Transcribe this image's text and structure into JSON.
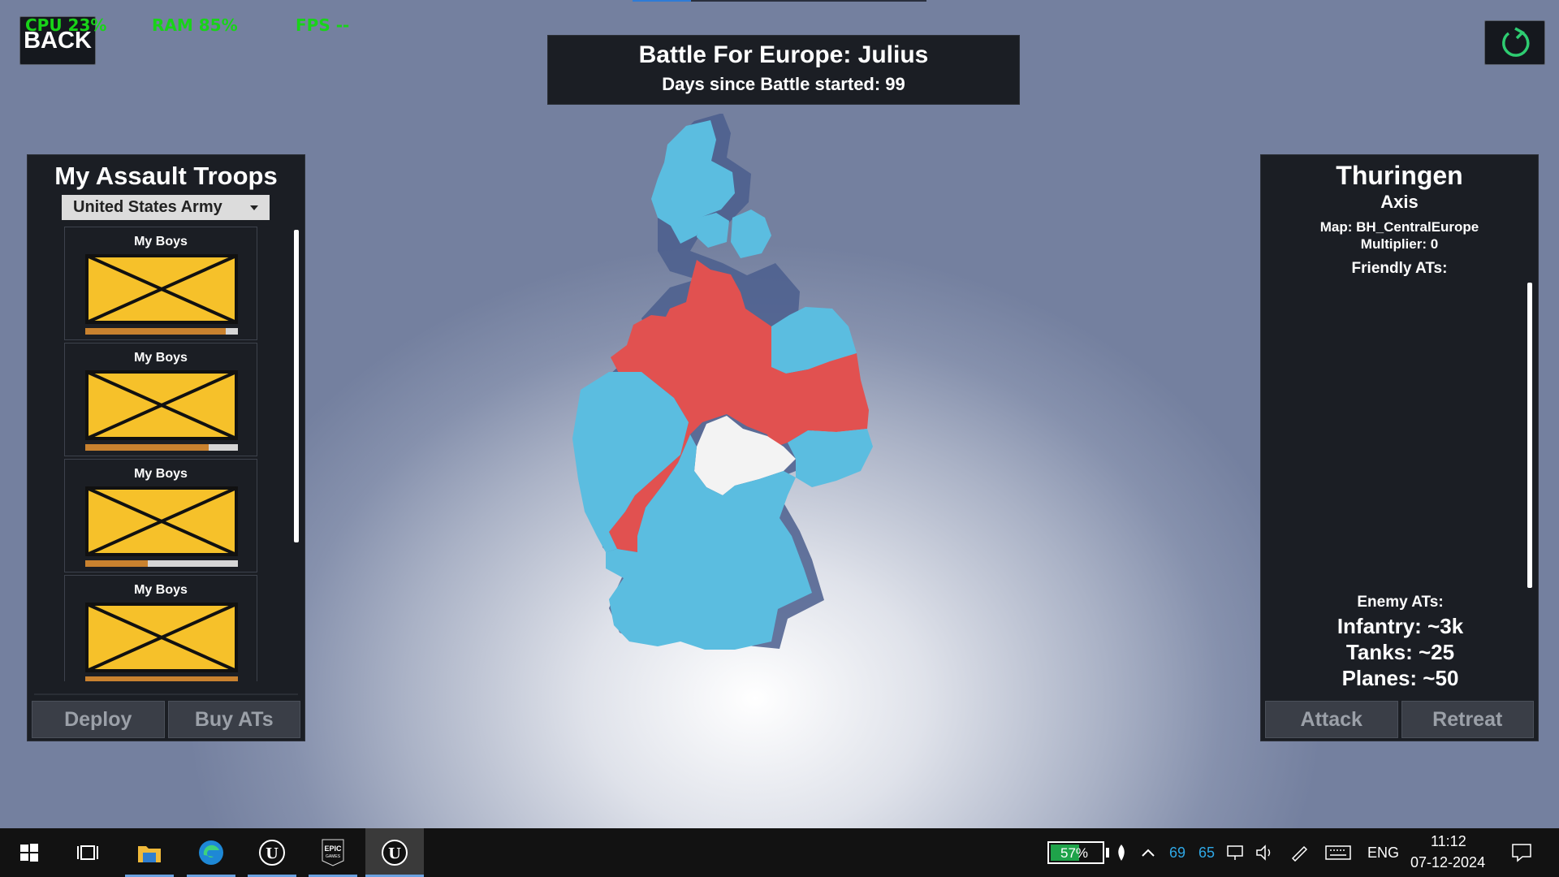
{
  "top_progress_fraction": 0.2,
  "hud": {
    "cpu": "CPU 23%",
    "ram": "RAM 85%",
    "fps": "FPS --"
  },
  "back_label": "BACK",
  "battle": {
    "title": "Battle For Europe: Julius",
    "days": "Days since Battle started: 99"
  },
  "left_panel": {
    "title": "My Assault Troops",
    "army_select": "United States Army",
    "troops": [
      {
        "name": "My Boys",
        "health": 0.92
      },
      {
        "name": "My Boys",
        "health": 0.81
      },
      {
        "name": "My Boys",
        "health": 0.41
      },
      {
        "name": "My Boys",
        "health": 1.0
      }
    ],
    "deploy_label": "Deploy",
    "buy_label": "Buy ATs"
  },
  "right_panel": {
    "region": "Thuringen",
    "faction": "Axis",
    "map": "Map: BH_CentralEurope",
    "multiplier": "Multiplier: 0",
    "friendly_label": "Friendly ATs:",
    "enemy_label": "Enemy ATs:",
    "infantry": "Infantry: ~3k",
    "tanks": "Tanks: ~25",
    "planes": "Planes: ~50",
    "attack_label": "Attack",
    "retreat_label": "Retreat"
  },
  "colors": {
    "allied": "#5bbde0",
    "axis": "#e15150",
    "contested": "#f3f3f3"
  },
  "taskbar": {
    "battery": "57%",
    "tray_num1": "69",
    "tray_num2": "65",
    "lang": "ENG",
    "time": "11:12",
    "date": "07-12-2024",
    "icons": [
      "windows-start-icon",
      "task-view-icon",
      "file-explorer-icon",
      "edge-icon",
      "unreal-engine-icon",
      "epic-games-icon",
      "unreal-engine-icon"
    ]
  }
}
